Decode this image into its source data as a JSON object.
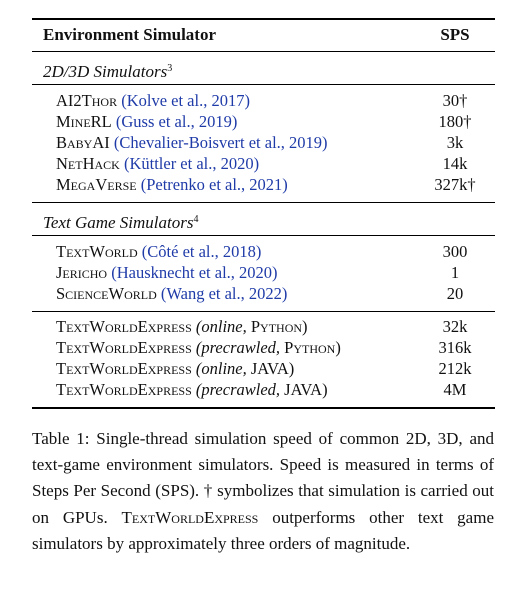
{
  "table": {
    "header": {
      "col1": "Environment Simulator",
      "col2": "SPS"
    },
    "sections": [
      {
        "title": "2D/3D Simulators",
        "footnote": "3",
        "rows": [
          {
            "name": "AI2Thor",
            "cite": "(Kolve et al., 2017)",
            "value": "30†"
          },
          {
            "name": "MineRL",
            "cite": "(Guss et al., 2019)",
            "value": "180†"
          },
          {
            "name": "BabyAI",
            "cite": "(Chevalier-Boisvert et al., 2019)",
            "value": "3k"
          },
          {
            "name": "NetHack",
            "cite": "(Küttler et al., 2020)",
            "value": "14k"
          },
          {
            "name": "MegaVerse",
            "cite": "(Petrenko et al., 2021)",
            "value": "327k†"
          }
        ]
      },
      {
        "title": "Text Game Simulators",
        "footnote": "4",
        "rows": [
          {
            "name": "TextWorld",
            "cite": "(Côté et al., 2018)",
            "value": "300"
          },
          {
            "name": "Jericho",
            "cite": "(Hausknecht et al., 2020)",
            "value": "1"
          },
          {
            "name": "ScienceWorld",
            "cite": "(Wang et al., 2022)",
            "value": "20"
          }
        ]
      }
    ],
    "twe_rows": [
      {
        "name": "TextWorldExpress",
        "mode": "online,",
        "lang": "Python",
        "close": ")",
        "value": "32k"
      },
      {
        "name": "TextWorldExpress",
        "mode": "precrawled,",
        "lang": "Python",
        "close": ")",
        "value": "316k"
      },
      {
        "name": "TextWorldExpress",
        "mode": "online,",
        "lang": "JAVA",
        "close": ")",
        "value": "212k"
      },
      {
        "name": "TextWorldExpress",
        "mode": "precrawled,",
        "lang": "JAVA",
        "close": ")",
        "value": "4M"
      }
    ]
  },
  "caption": {
    "part1": "Table 1: Single-thread simulation speed of common 2D, 3D, and text-game environment simulators. Speed is measured in terms of Steps Per Second (SPS). † symbolizes that simulation is carried out on GPUs.",
    "sc_name": "TextWorldExpress",
    "part2": "outperforms other text game simulators by approximately three orders of magnitude."
  }
}
